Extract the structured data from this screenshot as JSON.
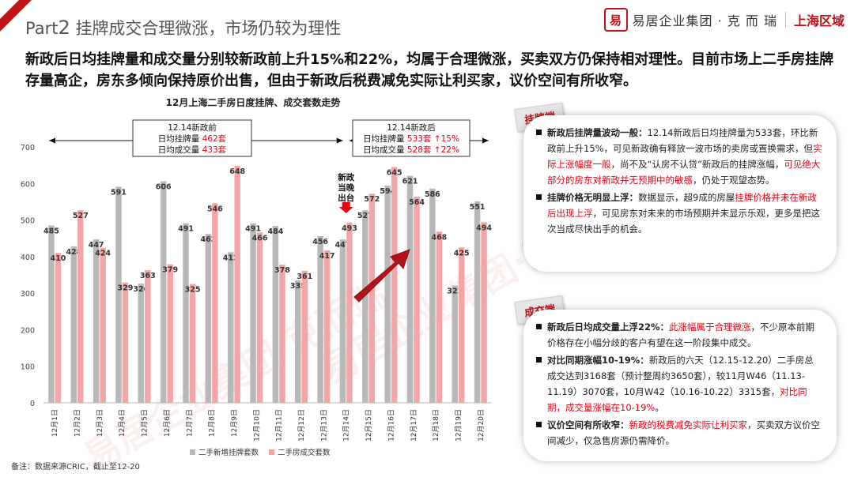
{
  "header": {
    "part_label": "Part",
    "part_number": "2",
    "title": "挂牌成交合理微涨，市场仍较为理性",
    "logo_mark": "易",
    "logo_company": "易居企业集团 · 克 而 瑞",
    "logo_region": "上海区域"
  },
  "headline": "新政后日均挂牌量和成交量分别较新政前上升15%和22%，均属于合理微涨，买卖双方仍保持相对理性。目前市场上二手房挂牌存量高企，房东多倾向保持原价出售，但由于新政后税费减免实际让利买家，议价空间有所收窄。",
  "chart_data": {
    "type": "bar",
    "title": "12月上海二手房日度挂牌、成交套数走势",
    "categories": [
      "12月1日",
      "12月2日",
      "12月3日",
      "12月4日",
      "12月5日",
      "12月6日",
      "12月7日",
      "12月8日",
      "12月9日",
      "12月10日",
      "12月11日",
      "12月12日",
      "12月13日",
      "12月14日",
      "12月15日",
      "12月16日",
      "12月17日",
      "12月18日",
      "12月19日",
      "12月20日"
    ],
    "series": [
      {
        "name": "二手新增挂牌套数",
        "color": "#b8b8b8",
        "values": [
          485,
          428,
          447,
          591,
          326,
          606,
          491,
          462,
          412,
          491,
          484,
          335,
          456,
          447,
          527,
          594,
          621,
          586,
          321,
          551
        ]
      },
      {
        "name": "二手房成交套数",
        "color": "#f4a6a6",
        "values": [
          410,
          527,
          424,
          329,
          363,
          379,
          325,
          546,
          648,
          466,
          378,
          361,
          417,
          493,
          572,
          645,
          564,
          468,
          425,
          494
        ]
      }
    ],
    "ylim": [
      0,
      700
    ],
    "yticks": [
      0,
      100,
      200,
      300,
      400,
      500,
      600,
      700
    ],
    "grid": false,
    "legend_position": "bottom",
    "pre_box": {
      "line1": "12.14新政前",
      "line2_prefix": "日均挂牌量 ",
      "line2_value": "462套",
      "line3_prefix": "日均成交量 ",
      "line3_value": "433套"
    },
    "post_box": {
      "line1": "12.14新政后",
      "line2_prefix": "日均挂牌量 ",
      "line2_value": "533套 ↑15%",
      "line3_prefix": "日均成交量 ",
      "line3_value": "528套 ↑22%"
    },
    "event_label": [
      "新政",
      "当晚",
      "出台"
    ]
  },
  "listing_panel": {
    "tag": "挂牌端",
    "items": [
      {
        "parts": [
          {
            "text": "新政后挂牌量波动一般：",
            "style": "bold"
          },
          {
            "text": "12.14新政后日均挂牌量为533套，环比新政前上升15%，可见新政确有释放一波市场的卖房或置换需求，但",
            "style": ""
          },
          {
            "text": "实际上涨幅度一般",
            "style": "red"
          },
          {
            "text": "，尚不及“认房不认贷”新政后的挂牌涨幅，",
            "style": ""
          },
          {
            "text": "可见绝大部分的房东对新政并无预期中的敏感",
            "style": "red"
          },
          {
            "text": "，仍处于观望态势。",
            "style": ""
          }
        ]
      },
      {
        "parts": [
          {
            "text": "挂牌价格无明显上浮：",
            "style": "bold"
          },
          {
            "text": "数据显示，超9成的房屋",
            "style": ""
          },
          {
            "text": "挂牌价格并未在新政后出现上浮",
            "style": "red"
          },
          {
            "text": "，可见房东对未来的市场预期并未显示乐观，更多是把这次当成尽快出手的机会。",
            "style": ""
          }
        ]
      }
    ]
  },
  "deal_panel": {
    "tag": "成交端",
    "items": [
      {
        "parts": [
          {
            "text": "新政后日均成交量上浮22%：",
            "style": "bold"
          },
          {
            "text": "此涨幅属于合理微涨",
            "style": "red"
          },
          {
            "text": "，不少原本前期价格存在小幅分歧的客户有望在这一阶段集中成交。",
            "style": ""
          }
        ]
      },
      {
        "parts": [
          {
            "text": "对比同期涨幅10-19%：",
            "style": "bold"
          },
          {
            "text": "新政后的六天（12.15-12.20）二手房总成交达到3168套（预计整周约3650套），较11月W46（11.13-11.19）3070套，10月W42（10.16-10.22）3315套，",
            "style": ""
          },
          {
            "text": "对比同期，成交量涨幅在10-19%",
            "style": "red"
          },
          {
            "text": "。",
            "style": ""
          }
        ]
      },
      {
        "parts": [
          {
            "text": "议价空间有所收窄：",
            "style": "bold"
          },
          {
            "text": "新政的税费减免实际让利买家",
            "style": "red"
          },
          {
            "text": "，买卖双方议价空间减少，仅急售房源仍需降价。",
            "style": ""
          }
        ]
      }
    ]
  },
  "footer": "备注：数据来源CRIC，截止至12-20",
  "colors": {
    "accent": "#c0101a",
    "highlight": "#e60012",
    "arrow": "#b3141c"
  }
}
